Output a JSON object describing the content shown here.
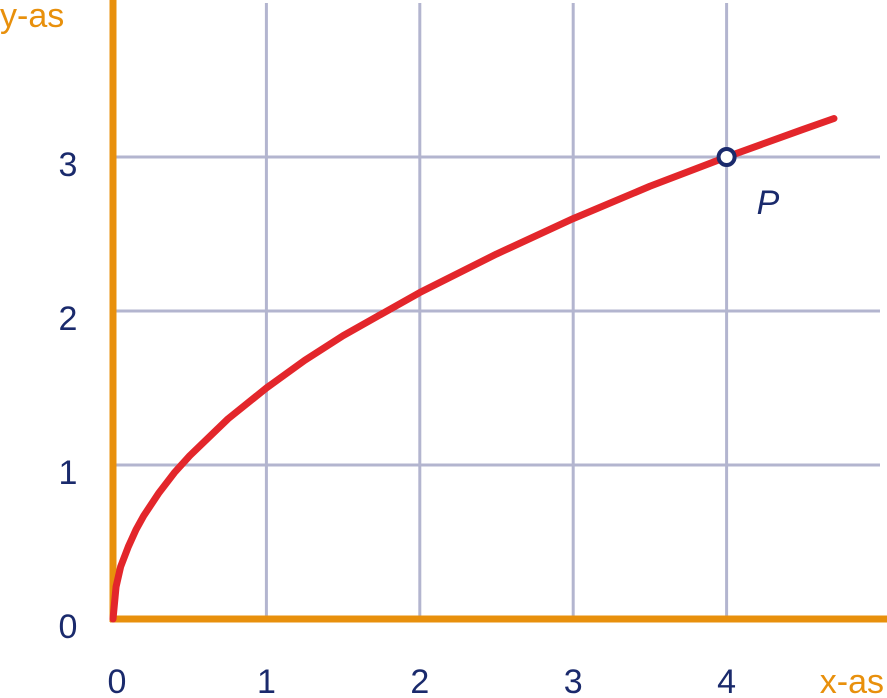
{
  "chart_data": {
    "type": "line",
    "x": [
      0,
      0.02,
      0.05,
      0.1,
      0.15,
      0.2,
      0.3,
      0.4,
      0.5,
      0.75,
      1,
      1.25,
      1.5,
      2,
      2.5,
      3,
      3.5,
      4,
      4.5,
      4.7
    ],
    "values": [
      0,
      0.21,
      0.34,
      0.47,
      0.58,
      0.67,
      0.82,
      0.95,
      1.06,
      1.3,
      1.5,
      1.68,
      1.84,
      2.12,
      2.37,
      2.6,
      2.81,
      3,
      3.18,
      3.25
    ],
    "color": "#e3262b",
    "xlabel": "x-as",
    "ylabel": "y-as",
    "xlim": [
      0,
      5
    ],
    "ylim": [
      0,
      4
    ],
    "xticks": [
      0,
      1,
      2,
      3,
      4
    ],
    "yticks": [
      0,
      1,
      2,
      3
    ],
    "grid": true,
    "annotations": [
      {
        "x": 4,
        "y": 3,
        "label": "P"
      }
    ]
  }
}
